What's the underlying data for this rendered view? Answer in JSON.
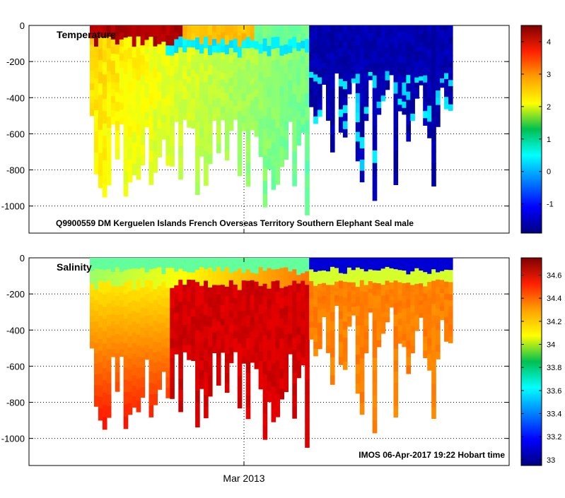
{
  "chart_data": [
    {
      "type": "heatmap",
      "title": "Temperature",
      "annotation": "Q9900559 DM Kerguelen Islands French Overseas Territory Southern Elephant Seal  male",
      "ylim": [
        -1150,
        0
      ],
      "y_ticks": [
        0,
        -200,
        -400,
        -600,
        -800,
        -1000
      ],
      "y_tick_labels": [
        "0",
        "-200",
        "-400",
        "-600",
        "-800",
        "-1000"
      ],
      "x_tick_label": "",
      "colorbar": {
        "range": [
          -1.9,
          4.5
        ],
        "ticks": [
          4,
          3,
          2,
          1,
          0,
          -1
        ],
        "tick_labels": [
          "4",
          "3",
          "2",
          "1",
          "0",
          "-1"
        ]
      }
    },
    {
      "type": "heatmap",
      "title": "Salinity",
      "annotation": "IMOS 06-Apr-2017 19:22 Hobart time",
      "ylim": [
        -1150,
        0
      ],
      "y_ticks": [
        0,
        -200,
        -400,
        -600,
        -800,
        -1000
      ],
      "y_tick_labels": [
        "0",
        "-200",
        "-400",
        "-600",
        "-800",
        "-1000"
      ],
      "x_tick_label": "Mar 2013",
      "colorbar": {
        "range": [
          32.95,
          34.75
        ],
        "ticks": [
          34.6,
          34.4,
          34.2,
          34,
          33.8,
          33.6,
          33.4,
          33.2,
          33
        ],
        "tick_labels": [
          "34.6",
          "34.4",
          "34.2",
          "34",
          "33.8",
          "33.6",
          "33.4",
          "33.2",
          "33"
        ]
      }
    }
  ]
}
